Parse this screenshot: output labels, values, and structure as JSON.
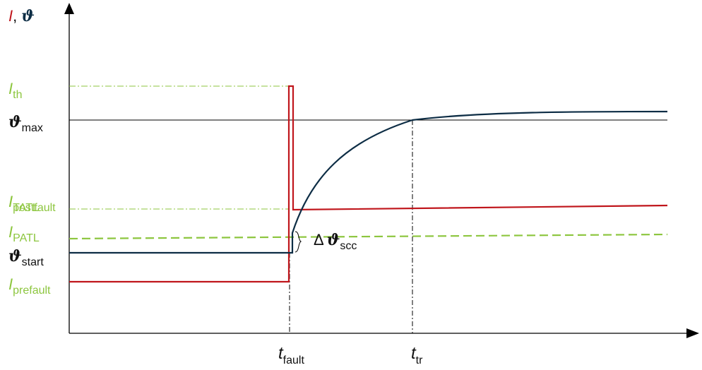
{
  "axis_label": {
    "current_symbol": "I",
    "separator": ",",
    "theta_symbol": "ϑ"
  },
  "y_labels": {
    "i_th": {
      "main": "I",
      "sub": "th"
    },
    "theta_max": {
      "main": "ϑ",
      "sub": "max"
    },
    "i_tatl": {
      "main": "I",
      "sub": "TATL"
    },
    "i_postfault": {
      "main": "I",
      "sub": "postfault"
    },
    "i_patl": {
      "main": "I",
      "sub": "PATL"
    },
    "theta_start": {
      "main": "ϑ",
      "sub": "start"
    },
    "i_prefault": {
      "main": "I",
      "sub": "prefault"
    }
  },
  "annotation": {
    "delta": "Δ",
    "theta": "ϑ",
    "sub": "scc"
  },
  "x_labels": {
    "t_fault": {
      "main": "t",
      "sub": "fault"
    },
    "t_tr": {
      "main": "t",
      "sub": "tr"
    }
  },
  "colors": {
    "current": "#c0161c",
    "temperature": "#0d2d45",
    "limits": "#8dc63f",
    "axis": "#000000",
    "label_green": "#8dc63f",
    "label_dark": "#111111"
  }
}
